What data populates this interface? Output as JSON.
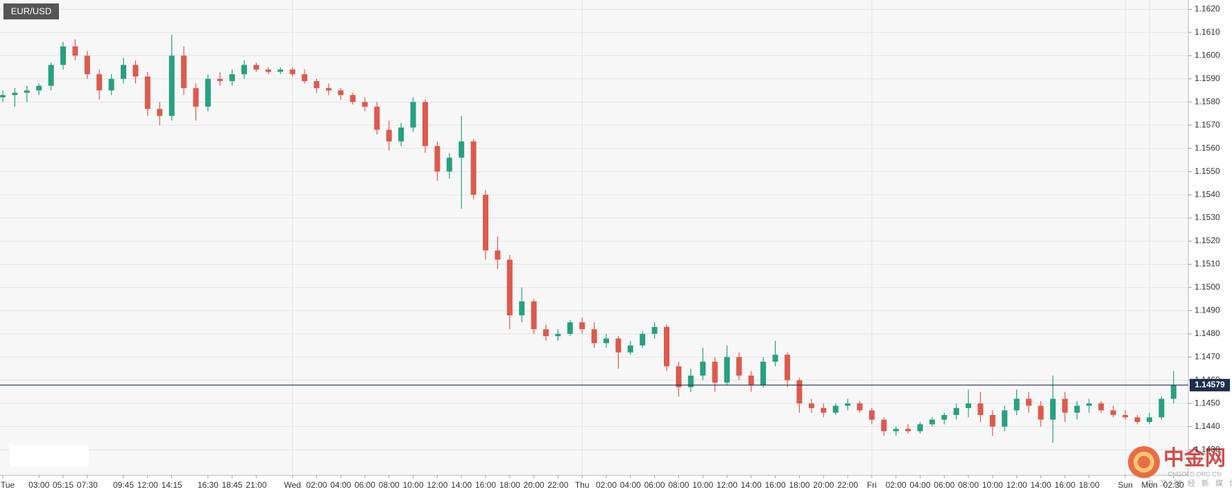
{
  "chart_data": {
    "type": "candlestick",
    "title": "EUR/USD",
    "categories": [
      "Tue",
      null,
      null,
      "03:00",
      null,
      "05:15",
      null,
      "07:30",
      null,
      null,
      "09:45",
      null,
      "12:00",
      null,
      "14:15",
      null,
      null,
      "16:30",
      null,
      "18:45",
      null,
      "21:00",
      null,
      null,
      "Wed",
      null,
      "02:00",
      null,
      "04:00",
      null,
      "06:00",
      null,
      "08:00",
      null,
      "10:00",
      null,
      "12:00",
      null,
      "14:00",
      null,
      "16:00",
      null,
      "18:00",
      null,
      "20:00",
      null,
      "22:00",
      null,
      "Thu",
      null,
      "02:00",
      null,
      "04:00",
      null,
      "06:00",
      null,
      "08:00",
      null,
      "10:00",
      null,
      "12:00",
      null,
      "14:00",
      null,
      "16:00",
      null,
      "18:00",
      null,
      "20:00",
      null,
      "22:00",
      null,
      "Fri",
      null,
      "02:00",
      null,
      "04:00",
      null,
      "06:00",
      null,
      "08:00",
      null,
      "10:00",
      null,
      "12:00",
      null,
      "14:00",
      null,
      "16:00",
      null,
      "18:00",
      null,
      null,
      "Sun",
      null,
      "Mon",
      null,
      "02:30"
    ],
    "open": [
      1.1582,
      1.1583,
      1.1584,
      1.1585,
      1.1587,
      1.1596,
      1.1604,
      1.16,
      1.1592,
      1.1585,
      1.159,
      1.1596,
      1.1591,
      1.1577,
      1.1574,
      1.16,
      1.1586,
      1.1578,
      1.159,
      1.1589,
      1.1592,
      1.1596,
      1.1594,
      1.1593,
      1.1594,
      1.1592,
      1.1589,
      1.1586,
      1.1585,
      1.1583,
      1.158,
      1.1578,
      1.1568,
      1.1563,
      1.1569,
      1.158,
      1.1561,
      1.155,
      1.1556,
      1.1563,
      1.154,
      1.1516,
      1.1512,
      1.1488,
      1.1494,
      1.1482,
      1.1479,
      1.148,
      1.1485,
      1.1482,
      1.1476,
      1.1478,
      1.1472,
      1.1475,
      1.148,
      1.1483,
      1.1466,
      1.1457,
      1.1462,
      1.1468,
      1.1459,
      1.147,
      1.1462,
      1.1458,
      1.1468,
      1.1471,
      1.146,
      1.145,
      1.1448,
      1.1446,
      1.1449,
      1.145,
      1.1447,
      1.1443,
      1.1438,
      1.1439,
      1.1438,
      1.1441,
      1.1443,
      1.1445,
      1.1448,
      1.145,
      1.1445,
      1.144,
      1.1447,
      1.1452,
      1.1449,
      1.1443,
      1.1452,
      1.1446,
      1.1449,
      1.145,
      1.1447,
      1.1445,
      1.1444,
      1.1442,
      1.1444,
      1.1452
    ],
    "high": [
      1.1585,
      1.1586,
      1.1587,
      1.1588,
      1.1597,
      1.1606,
      1.1607,
      1.1602,
      1.1594,
      1.1592,
      1.1599,
      1.1598,
      1.1593,
      1.158,
      1.1609,
      1.1604,
      1.1588,
      1.1592,
      1.1593,
      1.1594,
      1.1598,
      1.1597,
      1.1595,
      1.1595,
      1.1595,
      1.1594,
      1.159,
      1.1588,
      1.1586,
      1.1584,
      1.1582,
      1.158,
      1.1572,
      1.1571,
      1.1582,
      1.1581,
      1.1563,
      1.1558,
      1.1574,
      1.1564,
      1.1542,
      1.1522,
      1.1514,
      1.15,
      1.1495,
      1.1484,
      1.1482,
      1.1486,
      1.1487,
      1.1485,
      1.148,
      1.1479,
      1.1477,
      1.1481,
      1.1485,
      1.1484,
      1.1468,
      1.1465,
      1.1474,
      1.147,
      1.1475,
      1.1472,
      1.1464,
      1.147,
      1.1477,
      1.1472,
      1.1461,
      1.1452,
      1.145,
      1.145,
      1.1452,
      1.1451,
      1.1448,
      1.1444,
      1.144,
      1.1441,
      1.1442,
      1.1444,
      1.1446,
      1.145,
      1.1456,
      1.1455,
      1.1447,
      1.1449,
      1.1456,
      1.1455,
      1.1451,
      1.1462,
      1.1455,
      1.1451,
      1.1452,
      1.1451,
      1.1449,
      1.1447,
      1.1445,
      1.1446,
      1.1453,
      1.1464
    ],
    "low": [
      1.158,
      1.1578,
      1.158,
      1.1583,
      1.1585,
      1.1594,
      1.1598,
      1.159,
      1.1581,
      1.1583,
      1.1588,
      1.1588,
      1.1574,
      1.157,
      1.1572,
      1.1583,
      1.1572,
      1.1576,
      1.1587,
      1.1587,
      1.159,
      1.1593,
      1.1592,
      1.1592,
      1.1591,
      1.1588,
      1.1584,
      1.1583,
      1.1581,
      1.1579,
      1.1576,
      1.1566,
      1.1559,
      1.1561,
      1.1567,
      1.1558,
      1.1546,
      1.1547,
      1.1534,
      1.1538,
      1.1512,
      1.1508,
      1.1482,
      1.1485,
      1.148,
      1.1477,
      1.1477,
      1.1479,
      1.148,
      1.1474,
      1.1474,
      1.1465,
      1.1471,
      1.1474,
      1.1478,
      1.1464,
      1.1453,
      1.1455,
      1.146,
      1.1455,
      1.1458,
      1.146,
      1.1455,
      1.1457,
      1.1466,
      1.1457,
      1.1446,
      1.1446,
      1.1444,
      1.1445,
      1.1447,
      1.1446,
      1.1441,
      1.1436,
      1.1436,
      1.1437,
      1.1437,
      1.144,
      1.1441,
      1.1443,
      1.1444,
      1.1442,
      1.1436,
      1.1438,
      1.1445,
      1.1446,
      1.144,
      1.1433,
      1.1442,
      1.1443,
      1.1446,
      1.1446,
      1.1444,
      1.1443,
      1.1441,
      1.1441,
      1.1443,
      1.145
    ],
    "close": [
      1.1583,
      1.1584,
      1.1585,
      1.1587,
      1.1596,
      1.1604,
      1.16,
      1.1592,
      1.1585,
      1.159,
      1.1596,
      1.1591,
      1.1577,
      1.1574,
      1.16,
      1.1586,
      1.1578,
      1.159,
      1.1589,
      1.1592,
      1.1596,
      1.1594,
      1.1593,
      1.1594,
      1.1592,
      1.1589,
      1.1586,
      1.1585,
      1.1583,
      1.158,
      1.1578,
      1.1568,
      1.1563,
      1.1569,
      1.158,
      1.1561,
      1.155,
      1.1556,
      1.1563,
      1.154,
      1.1516,
      1.1512,
      1.1488,
      1.1494,
      1.1482,
      1.1479,
      1.148,
      1.1485,
      1.1482,
      1.1476,
      1.1478,
      1.1472,
      1.1475,
      1.148,
      1.1483,
      1.1466,
      1.1457,
      1.1462,
      1.1468,
      1.1459,
      1.147,
      1.1462,
      1.1458,
      1.1468,
      1.1471,
      1.146,
      1.145,
      1.1448,
      1.1446,
      1.1449,
      1.145,
      1.1447,
      1.1443,
      1.1438,
      1.1439,
      1.1438,
      1.1441,
      1.1443,
      1.1445,
      1.1448,
      1.145,
      1.1445,
      1.144,
      1.1447,
      1.1452,
      1.1449,
      1.1443,
      1.1452,
      1.1446,
      1.1449,
      1.145,
      1.1447,
      1.1445,
      1.1444,
      1.1442,
      1.1444,
      1.1452,
      1.1458
    ],
    "up_color": "#26a17f",
    "down_color": "#dd5a4c",
    "ylim": [
      1.1419,
      1.1624
    ],
    "yticks": [
      {
        "value": 1.143,
        "label": "1.1430"
      },
      {
        "value": 1.144,
        "label": "1.1440"
      },
      {
        "value": 1.145,
        "label": "1.1450"
      },
      {
        "value": 1.146,
        "label": "1.1460"
      },
      {
        "value": 1.147,
        "label": "1.1470"
      },
      {
        "value": 1.148,
        "label": "1.1480"
      },
      {
        "value": 1.149,
        "label": "1.1490"
      },
      {
        "value": 1.15,
        "label": "1.1500"
      },
      {
        "value": 1.151,
        "label": "1.1510"
      },
      {
        "value": 1.152,
        "label": "1.1520"
      },
      {
        "value": 1.153,
        "label": "1.1530"
      },
      {
        "value": 1.154,
        "label": "1.1540"
      },
      {
        "value": 1.155,
        "label": "1.1550"
      },
      {
        "value": 1.156,
        "label": "1.1560"
      },
      {
        "value": 1.157,
        "label": "1.1570"
      },
      {
        "value": 1.158,
        "label": "1.1580"
      },
      {
        "value": 1.159,
        "label": "1.1590"
      },
      {
        "value": 1.16,
        "label": "1.1600"
      },
      {
        "value": 1.161,
        "label": "1.1610"
      },
      {
        "value": 1.162,
        "label": "1.1620"
      }
    ],
    "grid": true,
    "last_price": {
      "value": 1.14579,
      "label": "1.14579",
      "color": "#1f2d4e"
    }
  },
  "watermark": {
    "name": "中金网",
    "domain": "CNGOLD.ORG.CN",
    "slogan": "中文财经新媒体"
  }
}
